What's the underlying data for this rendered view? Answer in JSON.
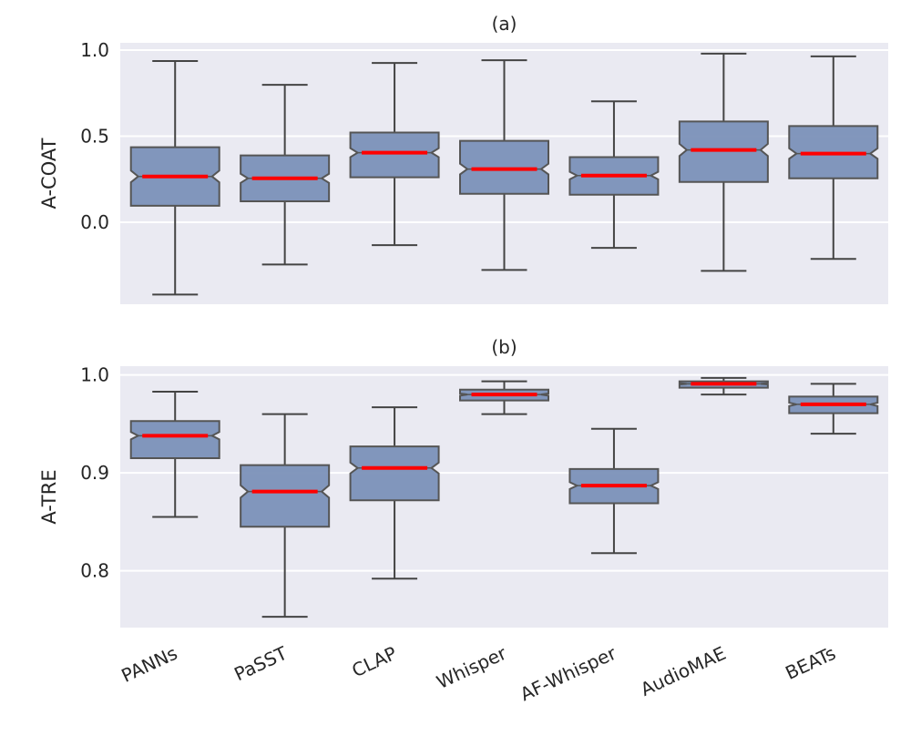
{
  "chart_data": [
    {
      "type": "box",
      "title": "(a)",
      "xlabel": "",
      "ylabel": "A-COAT",
      "ylim": [
        -0.476,
        1.042
      ],
      "yticks": [
        0.0,
        0.5,
        1.0
      ],
      "ytick_labels": [
        "0.0",
        "0.5",
        "1.0"
      ],
      "grid": true,
      "notched": true,
      "categories": [
        "PANNs",
        "PaSST",
        "CLAP",
        "Whisper",
        "AF-Whisper",
        "AudioMAE",
        "BEATs"
      ],
      "boxes": [
        {
          "whislo": -0.42,
          "q1": 0.096,
          "med": 0.266,
          "q3": 0.436,
          "whishi": 0.936
        },
        {
          "whislo": -0.245,
          "q1": 0.122,
          "med": 0.255,
          "q3": 0.388,
          "whishi": 0.798
        },
        {
          "whislo": -0.133,
          "q1": 0.261,
          "med": 0.404,
          "q3": 0.521,
          "whishi": 0.925
        },
        {
          "whislo": -0.277,
          "q1": 0.165,
          "med": 0.309,
          "q3": 0.473,
          "whishi": 0.941
        },
        {
          "whislo": -0.149,
          "q1": 0.16,
          "med": 0.271,
          "q3": 0.378,
          "whishi": 0.702
        },
        {
          "whislo": -0.282,
          "q1": 0.234,
          "med": 0.42,
          "q3": 0.585,
          "whishi": 0.979
        },
        {
          "whislo": -0.213,
          "q1": 0.255,
          "med": 0.399,
          "q3": 0.559,
          "whishi": 0.963
        }
      ]
    },
    {
      "type": "box",
      "title": "(b)",
      "xlabel": "",
      "ylabel": "A-TRE",
      "ylim": [
        0.742,
        1.009
      ],
      "yticks": [
        0.8,
        0.9,
        1.0
      ],
      "ytick_labels": [
        "0.8",
        "0.9",
        "1.0"
      ],
      "grid": true,
      "notched": true,
      "categories": [
        "PANNs",
        "PaSST",
        "CLAP",
        "Whisper",
        "AF-Whisper",
        "AudioMAE",
        "BEATs"
      ],
      "boxes": [
        {
          "whislo": 0.855,
          "q1": 0.915,
          "med": 0.938,
          "q3": 0.953,
          "whishi": 0.983
        },
        {
          "whislo": 0.753,
          "q1": 0.845,
          "med": 0.881,
          "q3": 0.908,
          "whishi": 0.96
        },
        {
          "whislo": 0.792,
          "q1": 0.872,
          "med": 0.905,
          "q3": 0.927,
          "whishi": 0.967
        },
        {
          "whislo": 0.96,
          "q1": 0.974,
          "med": 0.98,
          "q3": 0.985,
          "whishi": 0.9935
        },
        {
          "whislo": 0.818,
          "q1": 0.869,
          "med": 0.887,
          "q3": 0.904,
          "whishi": 0.945
        },
        {
          "whislo": 0.98,
          "q1": 0.987,
          "med": 0.991,
          "q3": 0.9935,
          "whishi": 0.997
        },
        {
          "whislo": 0.94,
          "q1": 0.961,
          "med": 0.97,
          "q3": 0.978,
          "whishi": 0.991
        }
      ]
    }
  ],
  "colors": {
    "box_fill": "#7b91b8",
    "box_edge": "#555555",
    "median": "#ff0000",
    "whisker": "#444444",
    "plot_bg": "#eaeaf2",
    "grid": "#ffffff"
  }
}
